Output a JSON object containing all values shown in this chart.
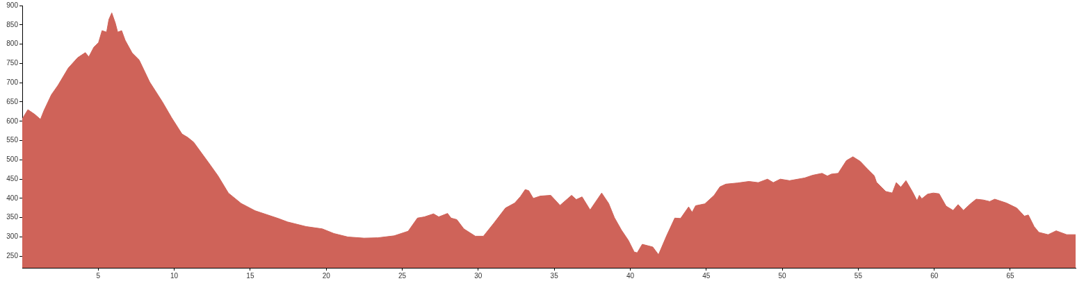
{
  "chart_data": {
    "type": "area",
    "color": "#cf6359",
    "marker": "none",
    "grid": false,
    "x": [
      0,
      0.37,
      0.82,
      1.2,
      1.43,
      1.92,
      2.35,
      3.03,
      3.65,
      4.15,
      4.38,
      4.71,
      5.02,
      5.25,
      5.55,
      5.7,
      5.89,
      6.12,
      6.28,
      6.54,
      6.77,
      7.23,
      7.69,
      8.38,
      9.21,
      9.83,
      10.51,
      10.89,
      11.27,
      12.27,
      12.87,
      13.56,
      14.4,
      15.32,
      16.84,
      17.45,
      18.67,
      19.74,
      20.5,
      21.42,
      22.49,
      23.4,
      24.47,
      25.39,
      26,
      26.45,
      27.06,
      27.4,
      27.98,
      28.21,
      28.59,
      29.05,
      29.81,
      30.34,
      31.03,
      31.79,
      32.4,
      32.78,
      33.09,
      33.32,
      33.62,
      34.08,
      34.77,
      35.38,
      36.14,
      36.45,
      36.83,
      37.36,
      38.12,
      38.58,
      38.96,
      39.42,
      39.88,
      40.26,
      40.46,
      40.79,
      41.48,
      41.86,
      42.39,
      42.93,
      43.31,
      43.84,
      44.07,
      44.3,
      44.91,
      45.52,
      45.9,
      46.29,
      47.05,
      47.81,
      48.42,
      49.03,
      49.41,
      49.87,
      50.48,
      51.47,
      52,
      52.62,
      52.97,
      53.23,
      53.68,
      54.22,
      54.65,
      55.13,
      55.59,
      56.05,
      56.2,
      56.81,
      57.24,
      57.5,
      57.8,
      58.14,
      58.57,
      58.87,
      59.02,
      59.18,
      59.56,
      59.94,
      60.32,
      60.78,
      61.24,
      61.57,
      61.92,
      62.38,
      62.76,
      63.22,
      63.65,
      63.98,
      64.75,
      65.43,
      65.93,
      66.19,
      66.57,
      66.88,
      67.49,
      68.02,
      68.71,
      69.3
    ],
    "values": [
      606,
      630,
      618,
      605,
      628,
      669,
      693,
      738,
      765,
      778,
      767,
      792,
      804,
      835,
      831,
      864,
      881,
      855,
      831,
      835,
      810,
      777,
      759,
      702,
      651,
      609,
      567,
      558,
      546,
      492,
      459,
      414,
      387,
      368,
      348,
      339,
      327,
      321,
      309,
      300,
      297,
      298,
      303,
      315,
      349,
      352,
      360,
      352,
      361,
      349,
      345,
      321,
      302,
      302,
      336,
      375,
      388,
      405,
      423,
      420,
      400,
      406,
      408,
      382,
      408,
      397,
      404,
      370,
      414,
      387,
      350,
      318,
      291,
      261,
      259,
      281,
      274,
      254,
      303,
      349,
      348,
      378,
      364,
      381,
      386,
      408,
      430,
      437,
      440,
      444,
      441,
      450,
      441,
      450,
      446,
      453,
      460,
      465,
      458,
      463,
      465,
      498,
      508,
      496,
      477,
      459,
      442,
      418,
      414,
      441,
      429,
      446,
      417,
      394,
      408,
      399,
      411,
      414,
      412,
      380,
      369,
      384,
      369,
      386,
      398,
      396,
      392,
      398,
      388,
      375,
      354,
      357,
      327,
      312,
      306,
      316,
      306,
      306
    ],
    "xlim": [
      0,
      69.3
    ],
    "xticks": [
      5,
      10,
      15,
      20,
      25,
      30,
      35,
      40,
      45,
      50,
      55,
      60,
      65
    ],
    "ylim": [
      220,
      900
    ],
    "yticks": [
      250,
      300,
      350,
      400,
      450,
      500,
      550,
      600,
      650,
      700,
      750,
      800,
      850,
      900
    ]
  }
}
